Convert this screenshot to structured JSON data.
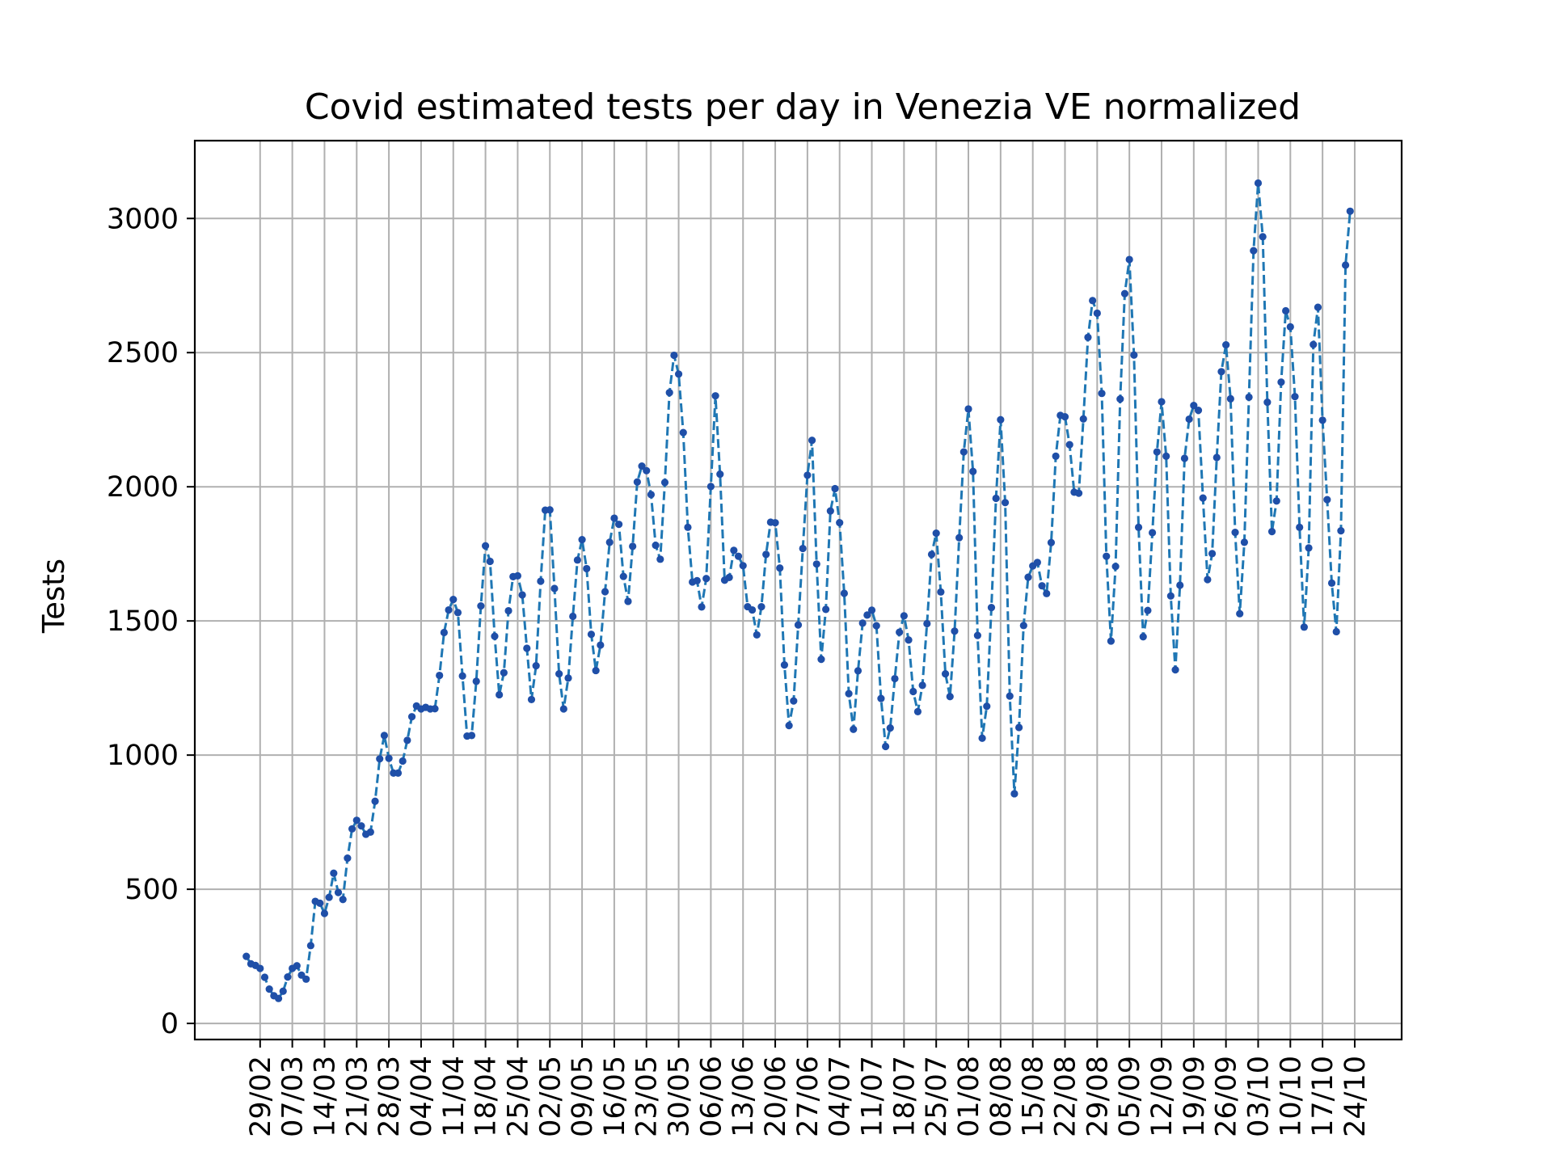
{
  "chart_data": {
    "type": "line",
    "title": "Covid estimated tests per day in Venezia VE normalized",
    "xlabel": "",
    "ylabel": "Tests",
    "ylim": [
      -60,
      3290
    ],
    "yticks": [
      0,
      500,
      1000,
      1500,
      2000,
      2500,
      3000
    ],
    "xtick_labels": [
      "29/02",
      "07/03",
      "14/03",
      "21/03",
      "28/03",
      "04/04",
      "11/04",
      "18/04",
      "25/04",
      "02/05",
      "09/05",
      "16/05",
      "23/05",
      "30/05",
      "06/06",
      "13/06",
      "20/06",
      "27/06",
      "04/07",
      "11/07",
      "18/07",
      "25/07",
      "01/08",
      "08/08",
      "15/08",
      "22/08",
      "29/08",
      "05/09",
      "12/09",
      "19/09",
      "26/09",
      "03/10",
      "10/10",
      "17/10",
      "24/10"
    ],
    "x_start": "2020-02-26",
    "x_end": "2020-10-24",
    "grid": true,
    "line_style": "dashed",
    "marker": "dot",
    "color": "#1f77b4",
    "marker_color": "#1f4fa8",
    "series": [
      {
        "values": [
          250,
          222,
          216,
          205,
          172,
          128,
          103,
          93,
          120,
          173,
          205,
          215,
          180,
          165,
          290,
          455,
          448,
          410,
          470,
          560,
          488,
          462,
          616,
          725,
          757,
          736,
          705,
          713,
          828,
          986,
          1073,
          988,
          933,
          933,
          978,
          1055,
          1143,
          1183,
          1172,
          1178,
          1172,
          1173,
          1297,
          1457,
          1541,
          1580,
          1531,
          1295,
          1071,
          1073,
          1275,
          1556,
          1780,
          1722,
          1443,
          1225,
          1307,
          1538,
          1665,
          1668,
          1597,
          1398,
          1207,
          1333,
          1648,
          1913,
          1914,
          1621,
          1303,
          1172,
          1287,
          1517,
          1727,
          1803,
          1695,
          1450,
          1315,
          1410,
          1609,
          1793,
          1883,
          1860,
          1666,
          1573,
          1778,
          2018,
          2077,
          2060,
          1971,
          1782,
          1730,
          2016,
          2351,
          2490,
          2420,
          2202,
          1849,
          1645,
          1650,
          1552,
          1658,
          2001,
          2339,
          2047,
          1652,
          1662,
          1763,
          1741,
          1706,
          1553,
          1541,
          1448,
          1553,
          1748,
          1868,
          1866,
          1697,
          1336,
          1110,
          1202,
          1485,
          1770,
          2043,
          2173,
          1712,
          1357,
          1543,
          1910,
          1993,
          1866,
          1603,
          1229,
          1096,
          1314,
          1492,
          1522,
          1540,
          1482,
          1211,
          1032,
          1101,
          1285,
          1458,
          1519,
          1429,
          1237,
          1162,
          1260,
          1490,
          1748,
          1827,
          1608,
          1303,
          1218,
          1462,
          1810,
          2130,
          2290,
          2057,
          1446,
          1063,
          1182,
          1550,
          1957,
          2250,
          1941,
          1220,
          856,
          1103,
          1483,
          1663,
          1705,
          1718,
          1631,
          1602,
          1792,
          2114,
          2266,
          2261,
          2157,
          1980,
          1976,
          2253,
          2557,
          2694,
          2647,
          2348,
          1741,
          1425,
          1703,
          2327,
          2720,
          2847,
          2491,
          1849,
          1441,
          1539,
          1829,
          2130,
          2317,
          2114,
          1593,
          1318,
          1633,
          2106,
          2252,
          2303,
          2285,
          1958,
          1654,
          1751,
          2109,
          2429,
          2529,
          2328,
          1830,
          1527,
          1793,
          2334,
          2880,
          3132,
          2932,
          2315,
          1833,
          1947,
          2390,
          2656,
          2596,
          2336,
          1849,
          1477,
          1772,
          2530,
          2669,
          2248,
          1952,
          1641,
          1460,
          1836,
          2826,
          3027
        ]
      }
    ]
  }
}
